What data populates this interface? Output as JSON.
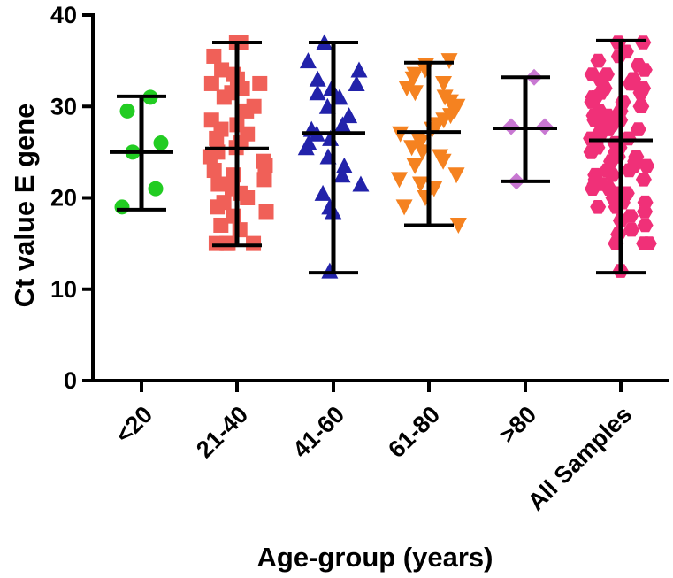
{
  "chart_data": {
    "type": "scatter",
    "title": "",
    "xlabel": "Age-group (years)",
    "ylabel": "Ct value E gene",
    "ylim": [
      0,
      40
    ],
    "yticks": [
      0,
      10,
      20,
      30,
      40
    ],
    "categories": [
      "<20",
      "21-40",
      "41-60",
      "61-80",
      ">80",
      "All Samples"
    ],
    "series": [
      {
        "name": "<20",
        "marker": "circle",
        "color": "#22cc22",
        "values": [
          31,
          29.5,
          26,
          25,
          21,
          19
        ],
        "mean": 25,
        "min": 18.7,
        "max": 31.1
      },
      {
        "name": "21-40",
        "marker": "square",
        "color": "#f06058",
        "values": [
          37,
          37,
          35.5,
          34,
          33.5,
          33,
          32.5,
          32.5,
          32,
          31.5,
          31,
          30,
          29.5,
          28.5,
          28,
          27.5,
          27,
          26.5,
          26,
          25.5,
          25,
          24.5,
          24,
          23.5,
          23,
          22.5,
          22,
          21.5,
          21,
          20.5,
          20,
          19.5,
          19,
          18.5,
          18,
          17,
          16.5,
          15,
          15,
          15,
          15
        ],
        "mean": 25.4,
        "min": 14.8,
        "max": 37
      },
      {
        "name": "41-60",
        "marker": "triangle-up",
        "color": "#2222aa",
        "values": [
          37,
          35,
          34,
          33,
          32.5,
          32,
          31.5,
          31,
          30,
          29,
          28,
          27.5,
          27,
          26.5,
          26,
          25.5,
          24.5,
          23.5,
          22.5,
          21.5,
          20.5,
          19,
          18.5,
          12
        ],
        "mean": 27.1,
        "min": 11.8,
        "max": 37
      },
      {
        "name": "61-80",
        "marker": "triangle-down",
        "color": "#f58220",
        "values": [
          35,
          34.5,
          34,
          33.5,
          33,
          32.5,
          32,
          31.5,
          31,
          30.5,
          30,
          29.5,
          29,
          28.5,
          28,
          27.5,
          27,
          26.5,
          26,
          25.5,
          25,
          24.5,
          24,
          23.5,
          22.5,
          22,
          21.5,
          21,
          20,
          19,
          17
        ],
        "mean": 27.2,
        "min": 17,
        "max": 34.8
      },
      {
        "name": ">80",
        "marker": "diamond",
        "color": "#c878d2",
        "values": [
          33.2,
          27.8,
          27.8,
          21.8
        ],
        "mean": 27.6,
        "min": 21.8,
        "max": 33.2
      },
      {
        "name": "All Samples",
        "marker": "hexagon",
        "color": "#f03078",
        "values": [
          37,
          37,
          36,
          35.5,
          35,
          34.5,
          34,
          33.5,
          33.5,
          33,
          33,
          32.5,
          32.5,
          32,
          32,
          31.5,
          31.5,
          31,
          31,
          30.5,
          30.5,
          30,
          30,
          29.5,
          29.5,
          29,
          29,
          28.5,
          28.5,
          28,
          28,
          27.5,
          27.5,
          27,
          27,
          26.5,
          26.5,
          26,
          26,
          25.5,
          25.5,
          25,
          25,
          24.5,
          24.5,
          24,
          24,
          23.5,
          23.5,
          23,
          23,
          22.5,
          22.5,
          22,
          22,
          21.5,
          21.5,
          21,
          21,
          20.5,
          20.5,
          20,
          20,
          19.5,
          19.5,
          19,
          19,
          18.5,
          18,
          17.5,
          17,
          16.5,
          16,
          15,
          15,
          15,
          12
        ],
        "mean": 26.3,
        "min": 11.8,
        "max": 37.2
      }
    ]
  }
}
